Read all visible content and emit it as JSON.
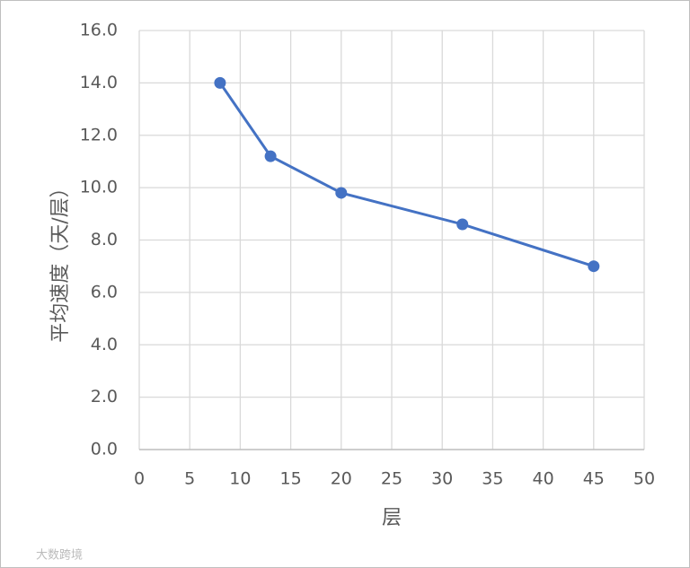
{
  "chart_data": {
    "type": "line",
    "x_label": "层",
    "y_label": "平均速度（天/层）",
    "x": [
      8,
      13,
      20,
      32,
      45
    ],
    "series": [
      {
        "name": "平均速度",
        "color": "#4472c4",
        "values": [
          14.0,
          11.2,
          9.8,
          8.6,
          7.0
        ]
      }
    ],
    "xlim": [
      0,
      50
    ],
    "xticks": [
      0,
      5,
      10,
      15,
      20,
      25,
      30,
      35,
      40,
      45,
      50
    ],
    "ylim": [
      0,
      16
    ],
    "yticks": [
      {
        "value": 0,
        "label": "0.0"
      },
      {
        "value": 2,
        "label": "2.0"
      },
      {
        "value": 4,
        "label": "4.0"
      },
      {
        "value": 6,
        "label": "6.0"
      },
      {
        "value": 8,
        "label": "8.0"
      },
      {
        "value": 10,
        "label": "10.0"
      },
      {
        "value": 12,
        "label": "12.0"
      },
      {
        "value": 14,
        "label": "14.0"
      },
      {
        "value": 16,
        "label": "16.0"
      }
    ],
    "grid": true
  },
  "watermark": "大数跨境"
}
